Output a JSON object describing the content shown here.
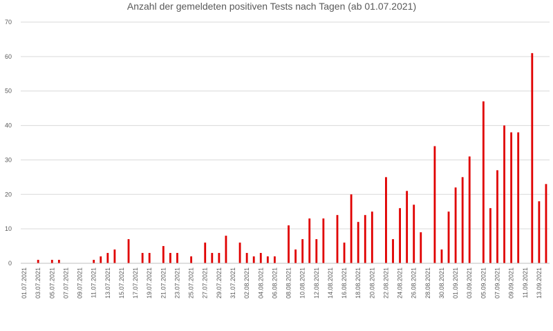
{
  "chart_data": {
    "type": "bar",
    "title": "Anzahl der gemeldeten positiven Tests nach Tagen (ab 01.07.2021)",
    "xlabel": "",
    "ylabel": "",
    "ylim": [
      0,
      70
    ],
    "yticks": [
      0,
      10,
      20,
      30,
      40,
      50,
      60,
      70
    ],
    "grid": true,
    "bar_color": "#e00000",
    "categories": [
      "01.07.2021",
      "02.07.2021",
      "03.07.2021",
      "04.07.2021",
      "05.07.2021",
      "06.07.2021",
      "07.07.2021",
      "08.07.2021",
      "09.07.2021",
      "10.07.2021",
      "11.07.2021",
      "12.07.2021",
      "13.07.2021",
      "14.07.2021",
      "15.07.2021",
      "16.07.2021",
      "17.07.2021",
      "18.07.2021",
      "19.07.2021",
      "20.07.2021",
      "21.07.2021",
      "22.07.2021",
      "23.07.2021",
      "24.07.2021",
      "25.07.2021",
      "26.07.2021",
      "27.07.2021",
      "28.07.2021",
      "29.07.2021",
      "30.07.2021",
      "31.07.2021",
      "01.08.2021",
      "02.08.2021",
      "03.08.2021",
      "04.08.2021",
      "05.08.2021",
      "06.08.2021",
      "07.08.2021",
      "08.08.2021",
      "09.08.2021",
      "10.08.2021",
      "11.08.2021",
      "12.08.2021",
      "13.08.2021",
      "14.08.2021",
      "15.08.2021",
      "16.08.2021",
      "17.08.2021",
      "18.08.2021",
      "19.08.2021",
      "20.08.2021",
      "21.08.2021",
      "22.08.2021",
      "23.08.2021",
      "24.08.2021",
      "25.08.2021",
      "26.08.2021",
      "27.08.2021",
      "28.08.2021",
      "29.08.2021",
      "30.08.2021",
      "31.08.2021",
      "01.09.2021",
      "02.09.2021",
      "03.09.2021",
      "04.09.2021",
      "05.09.2021",
      "06.09.2021",
      "07.09.2021",
      "08.09.2021",
      "09.09.2021",
      "10.09.2021",
      "11.09.2021",
      "12.09.2021",
      "13.09.2021",
      "14.09.2021"
    ],
    "tick_labels": [
      "01.07.2021",
      "03.07.2021",
      "05.07.2021",
      "07.07.2021",
      "09.07.2021",
      "11.07.2021",
      "13.07.2021",
      "15.07.2021",
      "17.07.2021",
      "19.07.2021",
      "21.07.2021",
      "23.07.2021",
      "25.07.2021",
      "27.07.2021",
      "29.07.2021",
      "31.07.2021",
      "02.08.2021",
      "04.08.2021",
      "06.08.2021",
      "08.08.2021",
      "10.08.2021",
      "12.08.2021",
      "14.08.2021",
      "16.08.2021",
      "18.08.2021",
      "20.08.2021",
      "22.08.2021",
      "24.08.2021",
      "26.08.2021",
      "28.08.2021",
      "30.08.2021",
      "01.09.2021",
      "03.09.2021",
      "05.09.2021",
      "07.09.2021",
      "09.09.2021",
      "11.09.2021",
      "13.09.2021"
    ],
    "values": [
      0,
      0,
      1,
      0,
      1,
      1,
      0,
      0,
      0,
      0,
      1,
      2,
      3,
      4,
      0,
      7,
      0,
      3,
      3,
      0,
      5,
      3,
      3,
      0,
      2,
      0,
      6,
      3,
      3,
      8,
      0,
      6,
      3,
      2,
      3,
      2,
      2,
      0,
      11,
      4,
      7,
      13,
      7,
      13,
      0,
      14,
      6,
      20,
      12,
      14,
      15,
      0,
      25,
      7,
      16,
      21,
      17,
      9,
      0,
      34,
      4,
      15,
      22,
      25,
      31,
      0,
      47,
      16,
      27,
      40,
      38,
      38,
      0,
      61,
      18,
      23
    ]
  }
}
